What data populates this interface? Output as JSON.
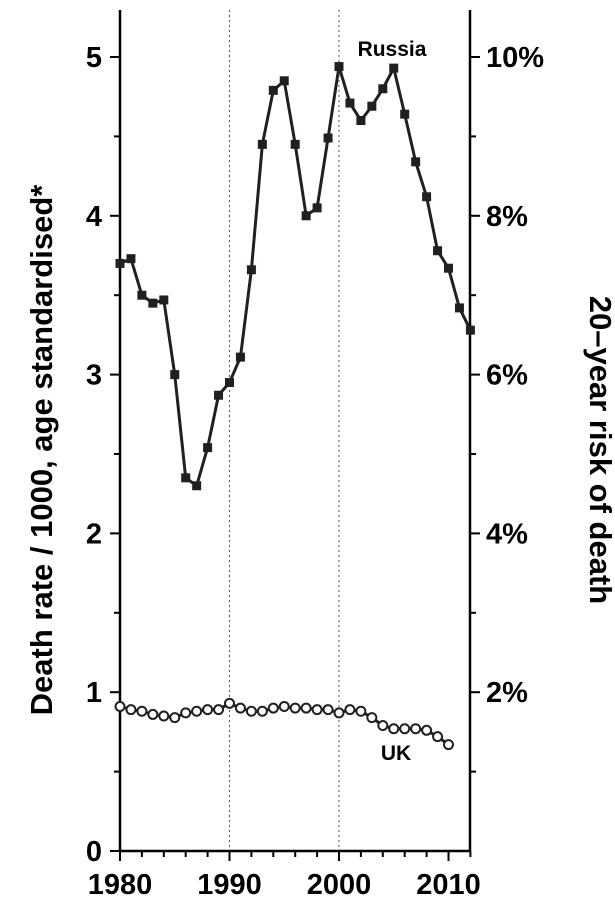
{
  "chart_data": {
    "type": "line",
    "title": "",
    "xlabel": "",
    "ylabel": "Death rate / 1000, age standardised*",
    "y2label": "20–year risk of death",
    "xlim": [
      1980,
      2011
    ],
    "ylim": [
      0,
      5.3
    ],
    "xticks": [
      1980,
      1990,
      2000,
      2010
    ],
    "yticks": [
      0,
      1,
      2,
      3,
      4,
      5
    ],
    "y2ticks": [
      "2%",
      "4%",
      "6%",
      "8%",
      "10%"
    ],
    "y2tick_values": [
      1,
      2,
      3,
      4,
      5
    ],
    "vlines": [
      1990,
      2000
    ],
    "grid": false,
    "series": [
      {
        "name": "Russia",
        "marker": "square",
        "color": "#231f20",
        "x": [
          1980,
          1981,
          1982,
          1983,
          1984,
          1985,
          1986,
          1987,
          1988,
          1989,
          1990,
          1991,
          1992,
          1993,
          1994,
          1995,
          1996,
          1997,
          1998,
          1999,
          2000,
          2001,
          2002,
          2003,
          2004,
          2005,
          2006,
          2007,
          2008,
          2009,
          2010,
          2011,
          2012
        ],
        "values": [
          3.7,
          3.73,
          3.5,
          3.45,
          3.47,
          3.0,
          2.35,
          2.3,
          2.54,
          2.87,
          2.95,
          3.11,
          3.66,
          4.45,
          4.79,
          4.85,
          4.45,
          4.0,
          4.05,
          4.49,
          4.94,
          4.71,
          4.6,
          4.69,
          4.8,
          4.93,
          4.64,
          4.34,
          4.12,
          3.78,
          3.67,
          3.42,
          3.28
        ]
      },
      {
        "name": "UK",
        "marker": "open-circle",
        "color": "#231f20",
        "x": [
          1980,
          1981,
          1982,
          1983,
          1984,
          1985,
          1986,
          1987,
          1988,
          1989,
          1990,
          1991,
          1992,
          1993,
          1994,
          1995,
          1996,
          1997,
          1998,
          1999,
          2000,
          2001,
          2002,
          2003,
          2004,
          2005,
          2006,
          2007,
          2008,
          2009,
          2010
        ],
        "values": [
          0.91,
          0.89,
          0.88,
          0.86,
          0.85,
          0.84,
          0.87,
          0.88,
          0.89,
          0.89,
          0.93,
          0.9,
          0.88,
          0.88,
          0.9,
          0.91,
          0.9,
          0.9,
          0.89,
          0.89,
          0.87,
          0.89,
          0.88,
          0.84,
          0.79,
          0.77,
          0.77,
          0.77,
          0.76,
          0.72,
          0.67
        ]
      }
    ]
  }
}
